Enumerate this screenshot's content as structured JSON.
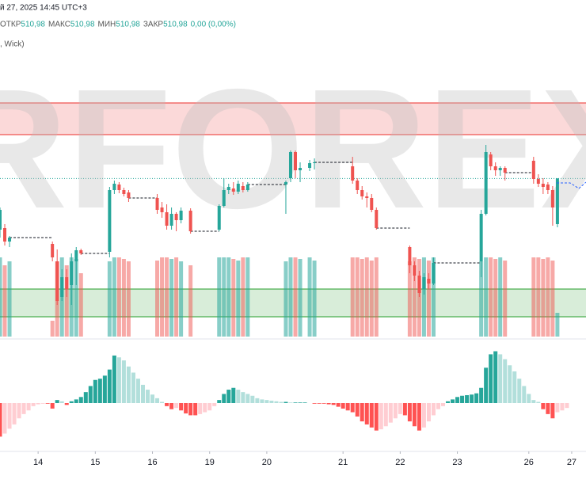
{
  "header": {
    "datetime": "й 27, 2025 14:45 UTC+3",
    "ohlc": [
      {
        "label": "ОТКР",
        "value": "510,98"
      },
      {
        "label": "МАКС",
        "value": "510,98"
      },
      {
        "label": "МИН",
        "value": "510,98"
      },
      {
        "label": "ЗАКР",
        "value": "510,98"
      }
    ],
    "change": "0,00 (0,00%)",
    "indicator": ", Wick)"
  },
  "watermark": "RFOREX",
  "chart_data": [
    {
      "type": "candlestick",
      "xlim": [
        0,
        123
      ],
      "ylim": [
        501,
        519
      ],
      "colors": {
        "up": "#26a69a",
        "down": "#ef5350"
      },
      "zones": [
        {
          "range": [
            513.75,
            515.75
          ],
          "color": "#ef5350"
        },
        {
          "range": [
            502.25,
            504.0
          ],
          "color": "#4caf50"
        }
      ],
      "x": [
        0,
        1,
        2,
        11,
        12,
        13,
        14,
        15,
        16,
        17,
        23,
        24,
        25,
        26,
        27,
        33,
        34,
        35,
        36,
        37,
        38,
        40,
        46,
        47,
        48,
        49,
        50,
        51,
        52,
        60,
        61,
        62,
        63,
        65,
        66,
        74,
        75,
        76,
        77,
        78,
        79,
        86,
        87,
        88,
        89,
        90,
        91,
        101,
        102,
        103,
        104,
        105,
        106,
        112,
        113,
        114,
        115,
        116,
        117
      ],
      "open": [
        507.75,
        507.85,
        507.0,
        506.85,
        505.75,
        503.5,
        504.75,
        504.25,
        505.75,
        506.45,
        506.35,
        510.25,
        510.6,
        510.25,
        510.1,
        509.75,
        509.15,
        508.85,
        508.0,
        508.75,
        508.35,
        508.95,
        507.75,
        509.25,
        510.25,
        510.35,
        510.15,
        510.5,
        510.25,
        510.6,
        511.0,
        512.65,
        511.5,
        511.65,
        511.95,
        511.75,
        510.85,
        510.25,
        509.85,
        509.75,
        509.0,
        506.65,
        505.5,
        504.85,
        504.0,
        504.65,
        504.35,
        505.75,
        508.75,
        512.5,
        511.75,
        511.5,
        511.65,
        512.1,
        510.95,
        510.65,
        510.6,
        510.25,
        508.1
      ],
      "high": [
        509.15,
        508.1,
        507.35,
        507.0,
        506.5,
        505.25,
        505.25,
        506.25,
        506.65,
        506.55,
        510.45,
        510.85,
        510.75,
        510.4,
        510.25,
        510.0,
        509.5,
        509.35,
        509.15,
        508.85,
        509.15,
        509.1,
        509.35,
        511.0,
        510.65,
        510.75,
        510.85,
        510.75,
        510.75,
        510.85,
        512.75,
        512.75,
        512.0,
        512.15,
        512.25,
        512.35,
        511.0,
        510.5,
        510.1,
        510.0,
        509.15,
        506.75,
        505.75,
        505.15,
        505.0,
        505.0,
        506.0,
        509.0,
        513.1,
        512.65,
        512.0,
        511.75,
        511.75,
        512.35,
        511.25,
        511.0,
        510.75,
        510.5,
        511.0
      ],
      "low": [
        507.25,
        506.75,
        506.65,
        505.75,
        503.0,
        503.25,
        503.5,
        503.0,
        504.25,
        506.15,
        506.0,
        510.0,
        510.05,
        509.85,
        509.5,
        508.75,
        508.5,
        507.75,
        507.75,
        507.65,
        508.15,
        507.5,
        507.65,
        509.15,
        510.0,
        509.95,
        510.0,
        510.1,
        510.15,
        508.75,
        510.75,
        511.0,
        510.75,
        511.45,
        511.55,
        510.65,
        510.0,
        509.65,
        509.15,
        508.85,
        507.75,
        505.0,
        504.5,
        503.5,
        503.65,
        504.0,
        504.25,
        504.75,
        508.65,
        511.5,
        511.15,
        511.15,
        510.85,
        510.65,
        510.45,
        510.0,
        510.0,
        508.0,
        507.9
      ],
      "close": [
        509.0,
        507.0,
        507.25,
        506.0,
        503.25,
        504.75,
        504.0,
        505.75,
        506.45,
        506.25,
        510.25,
        510.65,
        510.25,
        510.0,
        509.75,
        509.0,
        508.85,
        508.0,
        508.75,
        508.35,
        508.95,
        507.65,
        509.25,
        510.25,
        510.45,
        510.15,
        510.65,
        510.25,
        510.6,
        510.75,
        512.65,
        511.5,
        511.65,
        511.95,
        512.0,
        510.85,
        510.25,
        509.85,
        509.75,
        509.0,
        507.85,
        505.5,
        504.85,
        503.75,
        504.75,
        504.35,
        505.65,
        508.75,
        512.65,
        511.75,
        511.5,
        511.65,
        511.35,
        510.95,
        510.65,
        510.45,
        510.25,
        509.15,
        510.98
      ]
    },
    {
      "type": "volume",
      "xlim": [
        0,
        123
      ],
      "ylim": [
        0,
        100
      ],
      "colors": {
        "up": "rgba(38,166,154,0.55)",
        "down": "rgba(239,83,80,0.5)"
      },
      "x": [
        0,
        1,
        2,
        11,
        12,
        13,
        14,
        15,
        16,
        17,
        23,
        24,
        25,
        26,
        27,
        33,
        34,
        35,
        36,
        37,
        38,
        40,
        46,
        47,
        48,
        49,
        50,
        51,
        52,
        60,
        61,
        62,
        63,
        65,
        66,
        74,
        75,
        76,
        77,
        78,
        79,
        86,
        87,
        88,
        89,
        90,
        91,
        101,
        102,
        103,
        104,
        105,
        106,
        112,
        113,
        114,
        115,
        116,
        117
      ],
      "values": [
        100,
        90,
        95,
        20,
        95,
        100,
        90,
        100,
        98,
        80,
        95,
        100,
        100,
        98,
        95,
        96,
        100,
        100,
        98,
        100,
        95,
        90,
        100,
        100,
        100,
        98,
        96,
        100,
        100,
        95,
        100,
        100,
        98,
        100,
        96,
        100,
        100,
        98,
        100,
        96,
        100,
        95,
        100,
        98,
        100,
        96,
        100,
        95,
        100,
        100,
        98,
        100,
        96,
        100,
        100,
        98,
        100,
        96,
        30
      ]
    },
    {
      "type": "oscillator",
      "xlim": [
        0,
        123
      ],
      "ylim": [
        -100,
        100
      ],
      "colors": {
        "pos_rising": "#26a69a",
        "pos_falling": "#b2dfdb",
        "neg_falling": "#ff5252",
        "neg_rising": "#ffcdd2"
      },
      "x": [
        0,
        1,
        2,
        3,
        4,
        5,
        6,
        7,
        8,
        9,
        10,
        11,
        12,
        13,
        14,
        15,
        16,
        17,
        18,
        19,
        20,
        21,
        22,
        23,
        24,
        25,
        26,
        27,
        28,
        29,
        30,
        31,
        32,
        33,
        34,
        35,
        36,
        37,
        38,
        39,
        40,
        41,
        42,
        43,
        44,
        45,
        46,
        47,
        48,
        49,
        50,
        51,
        52,
        53,
        54,
        55,
        56,
        57,
        58,
        59,
        60,
        61,
        62,
        63,
        64,
        65,
        66,
        67,
        68,
        69,
        70,
        71,
        72,
        73,
        74,
        75,
        76,
        77,
        78,
        79,
        80,
        81,
        82,
        83,
        84,
        85,
        86,
        87,
        88,
        89,
        90,
        91,
        92,
        93,
        94,
        95,
        96,
        97,
        98,
        99,
        100,
        101,
        102,
        103,
        104,
        105,
        106,
        107,
        108,
        109,
        110,
        111,
        112,
        113,
        114,
        115,
        116,
        117,
        118,
        119
      ],
      "values": [
        -55,
        -50,
        -42,
        -35,
        -25,
        -18,
        -12,
        -5,
        -2,
        -1,
        -1,
        -9,
        5,
        3,
        -3,
        3,
        6,
        10,
        18,
        28,
        38,
        40,
        45,
        55,
        78,
        75,
        70,
        60,
        50,
        40,
        30,
        22,
        14,
        8,
        2,
        -5,
        -10,
        -8,
        -12,
        -17,
        -20,
        -20,
        -18,
        -15,
        -12,
        -5,
        5,
        15,
        22,
        25,
        22,
        18,
        15,
        12,
        8,
        6,
        5,
        4,
        3,
        2,
        2,
        1,
        1,
        1,
        1,
        0,
        -1,
        -1,
        -1,
        -2,
        -3,
        -6,
        -9,
        -12,
        -15,
        -22,
        -30,
        -35,
        -40,
        -45,
        -43,
        -38,
        -32,
        -25,
        -18,
        -20,
        -30,
        -38,
        -45,
        -40,
        -30,
        -20,
        -10,
        -5,
        3,
        6,
        10,
        12,
        13,
        14,
        16,
        25,
        58,
        80,
        85,
        80,
        72,
        62,
        52,
        40,
        28,
        15,
        5,
        2,
        -10,
        -18,
        -25,
        -15,
        -12,
        -8
      ],
      "xticks": [
        {
          "value": 8,
          "label": "14"
        },
        {
          "value": 20,
          "label": "15"
        },
        {
          "value": 32,
          "label": "16"
        },
        {
          "value": 44,
          "label": "19"
        },
        {
          "value": 56,
          "label": "20"
        },
        {
          "value": 72,
          "label": "21"
        },
        {
          "value": 84,
          "label": "22"
        },
        {
          "value": 96,
          "label": "23"
        },
        {
          "value": 111,
          "label": "26"
        },
        {
          "value": 120,
          "label": "27"
        }
      ]
    }
  ]
}
